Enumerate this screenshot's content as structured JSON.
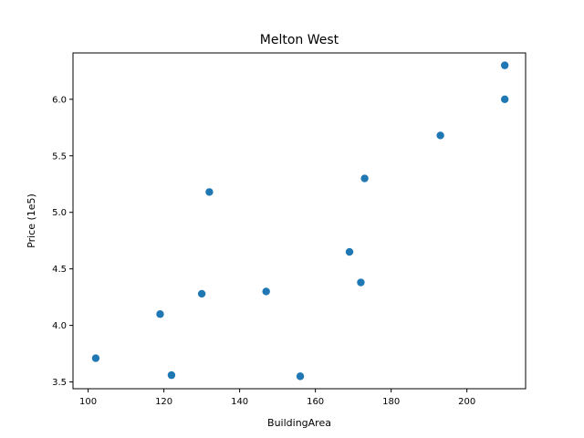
{
  "chart_data": {
    "type": "scatter",
    "title": "Melton West",
    "xlabel": "BuildingArea",
    "ylabel": "Price (1e5)",
    "xlim": [
      96.0,
      215.5
    ],
    "ylim": [
      3.44,
      6.41
    ],
    "xticks": [
      100,
      120,
      140,
      160,
      180,
      200
    ],
    "yticks": [
      3.5,
      4.0,
      4.5,
      5.0,
      5.5,
      6.0
    ],
    "xtick_labels": [
      "100",
      "120",
      "140",
      "160",
      "180",
      "200"
    ],
    "ytick_labels": [
      "3.5",
      "4.0",
      "4.5",
      "5.0",
      "5.5",
      "6.0"
    ],
    "grid": false,
    "marker_color": "#1f77b4",
    "series": [
      {
        "x": [
          102,
          119,
          122,
          130,
          132,
          147,
          156,
          169,
          172,
          173,
          193,
          210,
          210
        ],
        "y": [
          3.71,
          4.1,
          3.56,
          4.28,
          5.18,
          4.3,
          3.55,
          4.65,
          4.38,
          5.3,
          5.68,
          6.0,
          6.3
        ]
      }
    ]
  }
}
